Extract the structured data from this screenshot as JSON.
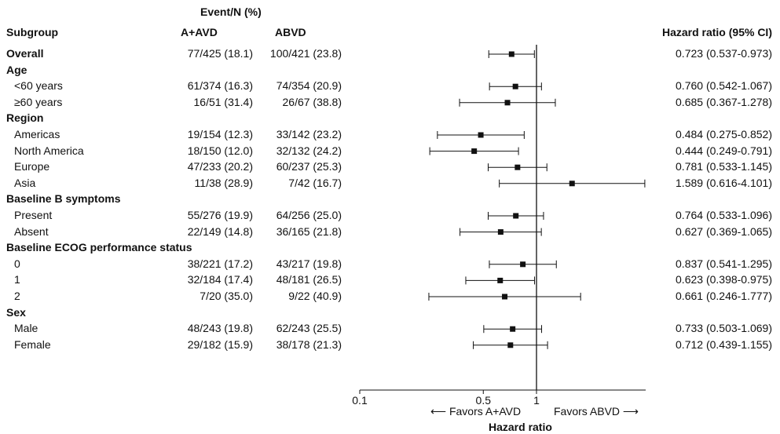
{
  "header": {
    "event_label": "Event/N (%)",
    "col_subgroup": "Subgroup",
    "col_a": "A+AVD",
    "col_b": "ABVD",
    "col_hr": "Hazard ratio (95% CI)"
  },
  "rows": [
    {
      "label": "Overall",
      "kind": "bold-row",
      "a": "77/425 (18.1)",
      "b": "100/421 (23.8)",
      "hr_text": "0.723 (0.537-0.973)",
      "hr": 0.723,
      "lo": 0.537,
      "hi": 0.973
    },
    {
      "label": "Age",
      "kind": "heading"
    },
    {
      "label": "<60 years",
      "kind": "row",
      "a": "61/374 (16.3)",
      "b": "74/354 (20.9)",
      "hr_text": "0.760 (0.542-1.067)",
      "hr": 0.76,
      "lo": 0.542,
      "hi": 1.067
    },
    {
      "label": "≥60 years",
      "kind": "row",
      "a": "16/51 (31.4)",
      "b": "26/67 (38.8)",
      "hr_text": "0.685 (0.367-1.278)",
      "hr": 0.685,
      "lo": 0.367,
      "hi": 1.278
    },
    {
      "label": "Region",
      "kind": "heading"
    },
    {
      "label": "Americas",
      "kind": "row",
      "a": "19/154 (12.3)",
      "b": "33/142 (23.2)",
      "hr_text": "0.484 (0.275-0.852)",
      "hr": 0.484,
      "lo": 0.275,
      "hi": 0.852
    },
    {
      "label": "North America",
      "kind": "row",
      "a": "18/150 (12.0)",
      "b": "32/132 (24.2)",
      "hr_text": "0.444 (0.249-0.791)",
      "hr": 0.444,
      "lo": 0.249,
      "hi": 0.791
    },
    {
      "label": "Europe",
      "kind": "row",
      "a": "47/233 (20.2)",
      "b": "60/237 (25.3)",
      "hr_text": "0.781 (0.533-1.145)",
      "hr": 0.781,
      "lo": 0.533,
      "hi": 1.145
    },
    {
      "label": "Asia",
      "kind": "row",
      "a": "11/38 (28.9)",
      "b": "7/42 (16.7)",
      "hr_text": "1.589 (0.616-4.101)",
      "hr": 1.589,
      "lo": 0.616,
      "hi": 4.101
    },
    {
      "label": "Baseline B symptoms",
      "kind": "heading"
    },
    {
      "label": "Present",
      "kind": "row",
      "a": "55/276 (19.9)",
      "b": "64/256 (25.0)",
      "hr_text": "0.764 (0.533-1.096)",
      "hr": 0.764,
      "lo": 0.533,
      "hi": 1.096
    },
    {
      "label": "Absent",
      "kind": "row",
      "a": "22/149 (14.8)",
      "b": "36/165 (21.8)",
      "hr_text": "0.627 (0.369-1.065)",
      "hr": 0.627,
      "lo": 0.369,
      "hi": 1.065
    },
    {
      "label": "Baseline ECOG performance status",
      "kind": "heading"
    },
    {
      "label": "0",
      "kind": "row",
      "a": "38/221 (17.2)",
      "b": "43/217 (19.8)",
      "hr_text": "0.837 (0.541-1.295)",
      "hr": 0.837,
      "lo": 0.541,
      "hi": 1.295
    },
    {
      "label": "1",
      "kind": "row",
      "a": "32/184 (17.4)",
      "b": "48/181 (26.5)",
      "hr_text": "0.623 (0.398-0.975)",
      "hr": 0.623,
      "lo": 0.398,
      "hi": 0.975
    },
    {
      "label": "2",
      "kind": "row",
      "a": "7/20 (35.0)",
      "b": "9/22 (40.9)",
      "hr_text": "0.661 (0.246-1.777)",
      "hr": 0.661,
      "lo": 0.246,
      "hi": 1.777
    },
    {
      "label": "Sex",
      "kind": "heading"
    },
    {
      "label": "Male",
      "kind": "row",
      "a": "48/243 (19.8)",
      "b": "62/243 (25.5)",
      "hr_text": "0.733 (0.503-1.069)",
      "hr": 0.733,
      "lo": 0.503,
      "hi": 1.069
    },
    {
      "label": "Female",
      "kind": "row",
      "a": "29/182 (15.9)",
      "b": "38/178 (21.3)",
      "hr_text": "0.712 (0.439-1.155)",
      "hr": 0.712,
      "lo": 0.439,
      "hi": 1.155
    }
  ],
  "axis": {
    "ticks": [
      0.1,
      0.5,
      1
    ],
    "tick_labels": [
      "0.1",
      "0.5",
      "1"
    ],
    "favors_left": "Favors A+AVD",
    "favors_right": "Favors ABVD",
    "xlabel": "Hazard ratio"
  },
  "chart_data": {
    "type": "forest",
    "x_scale": "log",
    "xlim": [
      0.1,
      4.5
    ],
    "reference_line": 1,
    "xlabel": "Hazard ratio",
    "categories": [
      "Overall",
      "<60 years",
      "≥60 years",
      "Americas",
      "North America",
      "Europe",
      "Asia",
      "Present",
      "Absent",
      "0",
      "1",
      "2",
      "Male",
      "Female"
    ],
    "values": [
      0.723,
      0.76,
      0.685,
      0.484,
      0.444,
      0.781,
      1.589,
      0.764,
      0.627,
      0.837,
      0.623,
      0.661,
      0.733,
      0.712
    ],
    "ci_lower": [
      0.537,
      0.542,
      0.367,
      0.275,
      0.249,
      0.533,
      0.616,
      0.533,
      0.369,
      0.541,
      0.398,
      0.246,
      0.503,
      0.439
    ],
    "ci_upper": [
      0.973,
      1.067,
      1.278,
      0.852,
      0.791,
      1.145,
      4.101,
      1.096,
      1.065,
      1.295,
      0.975,
      1.777,
      1.069,
      1.155
    ]
  }
}
